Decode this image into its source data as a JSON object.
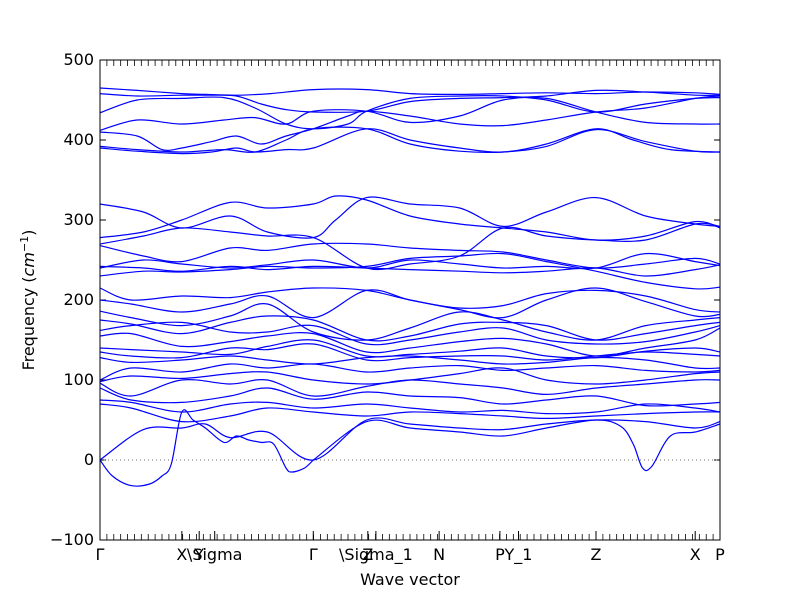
{
  "chart_data": {
    "type": "line",
    "title": "",
    "xlabel": "Wave vector",
    "ylabel": "Frequency ",
    "ylabel_unit_base": "cm",
    "ylabel_unit_exp": "−1",
    "ylim": [
      -100,
      500
    ],
    "yticks": [
      -100,
      0,
      100,
      200,
      300,
      400,
      500
    ],
    "xlim": [
      0,
      1
    ],
    "grid": false,
    "line_color": "#0000ff",
    "zero_line_color": "#6a6a6a",
    "high_symmetry_points": [
      {
        "label": "Γ",
        "x": 0.0
      },
      {
        "label": "X",
        "x": 0.132
      },
      {
        "label": "Y",
        "x": 0.16
      },
      {
        "label": "\\Sigma",
        "x": 0.185
      },
      {
        "label": "Γ",
        "x": 0.344
      },
      {
        "label": "Z",
        "x": 0.432
      },
      {
        "label": "\\Sigma_1",
        "x": 0.445
      },
      {
        "label": "N",
        "x": 0.547
      },
      {
        "label": "P",
        "x": 0.645
      },
      {
        "label": "Y_1",
        "x": 0.675
      },
      {
        "label": "Z",
        "x": 0.8
      },
      {
        "label": "X",
        "x": 0.96
      },
      {
        "label": "P",
        "x": 1.0
      }
    ],
    "series": [
      {
        "x": [
          0,
          0.06,
          0.132,
          0.17,
          0.22,
          0.275,
          0.344,
          0.43,
          0.5,
          0.58,
          0.65,
          0.72,
          0.8,
          0.88,
          0.96,
          1.0
        ],
        "y": [
          465,
          462,
          458,
          457,
          456,
          458,
          463,
          463,
          458,
          457,
          458,
          459,
          458,
          460,
          459,
          457
        ]
      },
      {
        "x": [
          0,
          0.06,
          0.132,
          0.18,
          0.22,
          0.26,
          0.3,
          0.344,
          0.43,
          0.5,
          0.58,
          0.65,
          0.72,
          0.8,
          0.88,
          0.96,
          1.0
        ],
        "y": [
          458,
          455,
          456,
          456,
          455,
          445,
          438,
          435,
          436,
          448,
          452,
          453,
          455,
          462,
          460,
          456,
          456
        ]
      },
      {
        "x": [
          0,
          0.06,
          0.132,
          0.2,
          0.25,
          0.3,
          0.344,
          0.4,
          0.43,
          0.5,
          0.58,
          0.65,
          0.72,
          0.8,
          0.88,
          0.96,
          1.0
        ],
        "y": [
          434,
          450,
          452,
          453,
          440,
          420,
          414,
          420,
          436,
          452,
          455,
          455,
          450,
          435,
          445,
          452,
          453
        ]
      },
      {
        "x": [
          0,
          0.06,
          0.132,
          0.2,
          0.25,
          0.3,
          0.344,
          0.43,
          0.5,
          0.58,
          0.65,
          0.72,
          0.8,
          0.88,
          0.96,
          1.0
        ],
        "y": [
          412,
          425,
          420,
          425,
          428,
          420,
          436,
          436,
          422,
          430,
          450,
          452,
          435,
          422,
          420,
          420
        ]
      },
      {
        "x": [
          0,
          0.06,
          0.1,
          0.132,
          0.18,
          0.22,
          0.26,
          0.3,
          0.344,
          0.4,
          0.43,
          0.5,
          0.58,
          0.65,
          0.72,
          0.8,
          0.88,
          0.96,
          1.0
        ],
        "y": [
          410,
          405,
          388,
          390,
          398,
          405,
          395,
          405,
          414,
          430,
          436,
          430,
          420,
          418,
          425,
          435,
          440,
          452,
          455
        ]
      },
      {
        "x": [
          0,
          0.06,
          0.132,
          0.18,
          0.22,
          0.25,
          0.3,
          0.344,
          0.43,
          0.5,
          0.58,
          0.65,
          0.72,
          0.8,
          0.86,
          0.92,
          1.0
        ],
        "y": [
          390,
          386,
          383,
          385,
          390,
          385,
          388,
          390,
          414,
          400,
          390,
          385,
          395,
          414,
          400,
          388,
          385
        ]
      },
      {
        "x": [
          0,
          0.06,
          0.132,
          0.2,
          0.25,
          0.3,
          0.344,
          0.43,
          0.5,
          0.58,
          0.65,
          0.72,
          0.8,
          0.88,
          0.96,
          1.0
        ],
        "y": [
          392,
          388,
          385,
          388,
          385,
          400,
          414,
          414,
          395,
          386,
          385,
          392,
          413,
          398,
          386,
          385
        ]
      },
      {
        "x": [
          0,
          0.07,
          0.132,
          0.21,
          0.27,
          0.344,
          0.38,
          0.43,
          0.5,
          0.58,
          0.65,
          0.72,
          0.8,
          0.88,
          0.96,
          1.0
        ],
        "y": [
          320,
          310,
          290,
          305,
          285,
          278,
          300,
          328,
          320,
          315,
          292,
          310,
          328,
          305,
          295,
          292
        ]
      },
      {
        "x": [
          0,
          0.07,
          0.132,
          0.21,
          0.27,
          0.344,
          0.38,
          0.43,
          0.5,
          0.58,
          0.65,
          0.72,
          0.8,
          0.88,
          0.96,
          1.0
        ],
        "y": [
          278,
          285,
          300,
          322,
          315,
          320,
          330,
          325,
          305,
          295,
          290,
          285,
          275,
          280,
          298,
          290
        ]
      },
      {
        "x": [
          0,
          0.07,
          0.132,
          0.21,
          0.27,
          0.344,
          0.43,
          0.5,
          0.58,
          0.65,
          0.72,
          0.8,
          0.88,
          0.96,
          1.0
        ],
        "y": [
          270,
          280,
          290,
          285,
          280,
          278,
          240,
          245,
          255,
          290,
          280,
          275,
          275,
          295,
          292
        ]
      },
      {
        "x": [
          0,
          0.07,
          0.132,
          0.21,
          0.27,
          0.344,
          0.43,
          0.5,
          0.58,
          0.65,
          0.72,
          0.8,
          0.88,
          0.96,
          1.0
        ],
        "y": [
          268,
          255,
          248,
          265,
          262,
          270,
          270,
          265,
          262,
          260,
          250,
          240,
          245,
          252,
          245
        ]
      },
      {
        "x": [
          0,
          0.07,
          0.132,
          0.21,
          0.27,
          0.344,
          0.43,
          0.5,
          0.58,
          0.65,
          0.72,
          0.8,
          0.88,
          0.96,
          1.0
        ],
        "y": [
          242,
          240,
          236,
          242,
          238,
          242,
          240,
          238,
          236,
          234,
          236,
          240,
          230,
          238,
          244
        ]
      },
      {
        "x": [
          0,
          0.07,
          0.132,
          0.21,
          0.27,
          0.344,
          0.43,
          0.5,
          0.58,
          0.65,
          0.72,
          0.8,
          0.88,
          0.96,
          1.0
        ],
        "y": [
          240,
          250,
          245,
          240,
          244,
          250,
          240,
          250,
          245,
          240,
          242,
          240,
          258,
          248,
          243
        ]
      },
      {
        "x": [
          0,
          0.07,
          0.132,
          0.21,
          0.27,
          0.344,
          0.43,
          0.5,
          0.58,
          0.65,
          0.72,
          0.8,
          0.88,
          0.96,
          1.0
        ],
        "y": [
          230,
          236,
          235,
          238,
          242,
          240,
          242,
          252,
          255,
          258,
          248,
          236,
          222,
          214,
          216
        ]
      },
      {
        "x": [
          0,
          0.05,
          0.132,
          0.21,
          0.27,
          0.344,
          0.43,
          0.5,
          0.58,
          0.65,
          0.72,
          0.8,
          0.88,
          0.96,
          1.0
        ],
        "y": [
          215,
          200,
          205,
          203,
          210,
          215,
          212,
          200,
          190,
          193,
          208,
          212,
          205,
          188,
          185
        ]
      },
      {
        "x": [
          0,
          0.05,
          0.132,
          0.21,
          0.27,
          0.344,
          0.43,
          0.5,
          0.58,
          0.65,
          0.72,
          0.8,
          0.88,
          0.96,
          1.0
        ],
        "y": [
          200,
          195,
          185,
          195,
          205,
          178,
          212,
          200,
          188,
          178,
          200,
          215,
          198,
          180,
          182
        ]
      },
      {
        "x": [
          0,
          0.05,
          0.132,
          0.21,
          0.27,
          0.344,
          0.43,
          0.5,
          0.58,
          0.65,
          0.72,
          0.8,
          0.88,
          0.96,
          1.0
        ],
        "y": [
          186,
          178,
          168,
          180,
          195,
          160,
          150,
          165,
          185,
          175,
          160,
          150,
          168,
          175,
          178
        ]
      },
      {
        "x": [
          0,
          0.05,
          0.132,
          0.21,
          0.27,
          0.344,
          0.43,
          0.5,
          0.58,
          0.65,
          0.72,
          0.8,
          0.88,
          0.96,
          1.0
        ],
        "y": [
          175,
          170,
          158,
          172,
          180,
          175,
          150,
          155,
          170,
          172,
          168,
          150,
          158,
          168,
          172
        ]
      },
      {
        "x": [
          0,
          0.05,
          0.132,
          0.21,
          0.27,
          0.344,
          0.43,
          0.5,
          0.58,
          0.65,
          0.72,
          0.8,
          0.88,
          0.96,
          1.0
        ],
        "y": [
          162,
          168,
          172,
          160,
          160,
          168,
          145,
          150,
          160,
          165,
          150,
          145,
          148,
          160,
          168
        ]
      },
      {
        "x": [
          0,
          0.05,
          0.132,
          0.21,
          0.27,
          0.344,
          0.43,
          0.5,
          0.58,
          0.65,
          0.72,
          0.8,
          0.88,
          0.96,
          1.0
        ],
        "y": [
          155,
          158,
          142,
          148,
          155,
          158,
          135,
          140,
          148,
          152,
          145,
          130,
          140,
          150,
          165
        ]
      },
      {
        "x": [
          0,
          0.05,
          0.132,
          0.21,
          0.27,
          0.344,
          0.43,
          0.5,
          0.58,
          0.65,
          0.72,
          0.8,
          0.88,
          0.96,
          1.0
        ],
        "y": [
          140,
          138,
          135,
          132,
          142,
          150,
          130,
          132,
          136,
          140,
          130,
          128,
          136,
          140,
          135
        ]
      },
      {
        "x": [
          0,
          0.05,
          0.132,
          0.21,
          0.27,
          0.344,
          0.43,
          0.5,
          0.58,
          0.65,
          0.72,
          0.8,
          0.88,
          0.96,
          1.0
        ],
        "y": [
          135,
          130,
          128,
          140,
          138,
          145,
          125,
          128,
          130,
          130,
          125,
          130,
          135,
          132,
          130
        ]
      },
      {
        "x": [
          0,
          0.05,
          0.132,
          0.21,
          0.27,
          0.344,
          0.43,
          0.5,
          0.58,
          0.65,
          0.72,
          0.8,
          0.88,
          0.96,
          1.0
        ],
        "y": [
          128,
          122,
          125,
          130,
          125,
          120,
          128,
          130,
          125,
          120,
          122,
          128,
          125,
          115,
          115
        ]
      },
      {
        "x": [
          0,
          0.05,
          0.132,
          0.21,
          0.27,
          0.344,
          0.43,
          0.5,
          0.58,
          0.65,
          0.72,
          0.8,
          0.88,
          0.96,
          1.0
        ],
        "y": [
          100,
          115,
          110,
          120,
          115,
          120,
          110,
          115,
          118,
          112,
          115,
          118,
          112,
          110,
          112
        ]
      },
      {
        "x": [
          0,
          0.05,
          0.132,
          0.21,
          0.27,
          0.344,
          0.43,
          0.5,
          0.58,
          0.65,
          0.72,
          0.8,
          0.88,
          0.96,
          1.0
        ],
        "y": [
          98,
          105,
          102,
          108,
          110,
          100,
          95,
          100,
          108,
          115,
          100,
          95,
          100,
          108,
          110
        ]
      },
      {
        "x": [
          0,
          0.05,
          0.132,
          0.21,
          0.27,
          0.344,
          0.43,
          0.5,
          0.58,
          0.65,
          0.72,
          0.8,
          0.88,
          0.96,
          1.0
        ],
        "y": [
          96,
          80,
          100,
          95,
          100,
          80,
          92,
          100,
          95,
          90,
          82,
          90,
          95,
          100,
          100
        ]
      },
      {
        "x": [
          0,
          0.05,
          0.132,
          0.21,
          0.27,
          0.344,
          0.43,
          0.5,
          0.58,
          0.65,
          0.72,
          0.8,
          0.88,
          0.96,
          1.0
        ],
        "y": [
          90,
          75,
          72,
          80,
          90,
          76,
          85,
          80,
          78,
          70,
          75,
          80,
          68,
          70,
          72
        ]
      },
      {
        "x": [
          0,
          0.05,
          0.132,
          0.21,
          0.27,
          0.344,
          0.43,
          0.5,
          0.58,
          0.65,
          0.72,
          0.8,
          0.88,
          0.96,
          1.0
        ],
        "y": [
          75,
          72,
          60,
          70,
          72,
          65,
          70,
          65,
          60,
          62,
          58,
          60,
          70,
          65,
          60
        ]
      },
      {
        "x": [
          0,
          0.05,
          0.132,
          0.21,
          0.27,
          0.344,
          0.43,
          0.5,
          0.58,
          0.65,
          0.72,
          0.8,
          0.88,
          0.96,
          1.0
        ],
        "y": [
          70,
          65,
          48,
          55,
          65,
          60,
          55,
          60,
          58,
          55,
          52,
          55,
          58,
          60,
          60
        ]
      },
      {
        "x": [
          0,
          0.07,
          0.132,
          0.17,
          0.21,
          0.27,
          0.344,
          0.43,
          0.5,
          0.58,
          0.65,
          0.72,
          0.8,
          0.88,
          0.96,
          1.0
        ],
        "y": [
          0,
          38,
          40,
          45,
          28,
          35,
          0,
          50,
          45,
          40,
          38,
          45,
          50,
          48,
          40,
          48
        ]
      },
      {
        "x": [
          0,
          0.02,
          0.05,
          0.08,
          0.1,
          0.115,
          0.132,
          0.15,
          0.17,
          0.2,
          0.22,
          0.24,
          0.26,
          0.28,
          0.3,
          0.31,
          0.33,
          0.344
        ],
        "y": [
          0,
          -20,
          -32,
          -30,
          -20,
          -5,
          60,
          50,
          40,
          22,
          30,
          25,
          22,
          20,
          -10,
          -15,
          -10,
          0
        ]
      },
      {
        "x": [
          0.344,
          0.43,
          0.5,
          0.58,
          0.65,
          0.72,
          0.8,
          0.84,
          0.86,
          0.875,
          0.89,
          0.92,
          0.96,
          1.0
        ],
        "y": [
          0,
          48,
          40,
          35,
          30,
          40,
          50,
          42,
          20,
          -10,
          -8,
          30,
          35,
          45
        ]
      }
    ]
  }
}
